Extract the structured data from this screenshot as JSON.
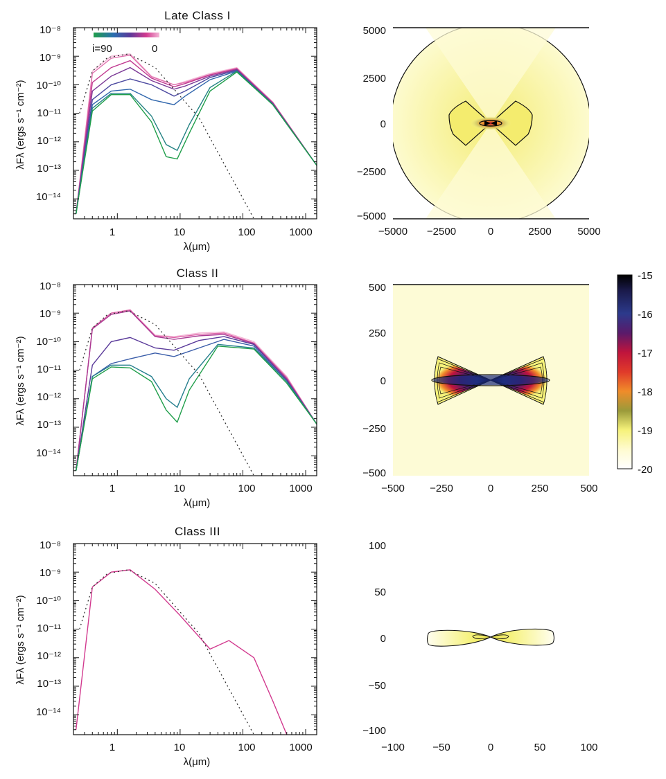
{
  "colors": {
    "inclination_gradient": [
      "#1f9e4a",
      "#2a6fb0",
      "#5a3a9a",
      "#d23a8f",
      "#f3b6d6"
    ],
    "photosphere": "#333333",
    "density_colormap": [
      "#ffffff",
      "#fffbd0",
      "#f6f27a",
      "#e8e04a",
      "#9a9a3a",
      "#f08c2a",
      "#e03a2a",
      "#c0143c",
      "#5a1a6a",
      "#2c3a8c",
      "#1a1a4a",
      "#000000"
    ]
  },
  "colorbar": {
    "ticks": [
      "-15",
      "-16",
      "-17",
      "-18",
      "-19",
      "-20"
    ],
    "range": [
      -20,
      -15
    ]
  },
  "legend": {
    "left_label": "i=90",
    "right_label": "0"
  },
  "chart_data": [
    {
      "type": "line",
      "panel": "sed",
      "title": "Late Class I",
      "xlabel": "λ(μm)",
      "ylabel": "λFλ (ergs s⁻¹ cm⁻²)",
      "xscale": "log",
      "yscale": "log",
      "xlim": [
        0.2,
        1500
      ],
      "ylim": [
        2e-15,
        1e-08
      ],
      "x_ticks": [
        "1",
        "10",
        "100",
        "1000"
      ],
      "y_ticks": [
        "10⁻⁸",
        "10⁻⁹",
        "10⁻¹⁰",
        "10⁻¹¹",
        "10⁻¹²",
        "10⁻¹³",
        "10⁻¹⁴"
      ],
      "photosphere": {
        "x": [
          0.25,
          0.4,
          0.7,
          1.5,
          4,
          20,
          150
        ],
        "y": [
          1e-11,
          3e-10,
          9e-10,
          1.2e-09,
          4e-10,
          7e-12,
          2e-15
        ]
      },
      "series": [
        {
          "x": [
            0.22,
            0.4,
            0.8,
            1.6,
            3.5,
            8,
            12,
            30,
            80,
            300,
            1500
          ],
          "y": [
            3e-15,
            3e-10,
            1e-09,
            1.2e-09,
            2e-10,
            1e-10,
            1.3e-10,
            2.5e-10,
            4e-10,
            2.5e-11,
            1.5e-13
          ]
        },
        {
          "x": [
            0.22,
            0.4,
            0.8,
            1.6,
            3.5,
            8,
            12,
            30,
            80,
            300,
            1500
          ],
          "y": [
            3e-15,
            2.5e-10,
            8.5e-10,
            1.1e-09,
            1.9e-10,
            1e-10,
            1.2e-10,
            2.3e-10,
            3.8e-10,
            2.4e-11,
            1.5e-13
          ]
        },
        {
          "x": [
            0.22,
            0.4,
            0.8,
            1.6,
            3.5,
            8,
            12,
            30,
            80,
            300,
            1500
          ],
          "y": [
            3e-15,
            1.2e-10,
            4e-10,
            7e-10,
            1.7e-10,
            8.5e-11,
            1.1e-10,
            2.2e-10,
            3.6e-10,
            2.3e-11,
            1.5e-13
          ]
        },
        {
          "x": [
            0.22,
            0.4,
            0.8,
            1.6,
            3.5,
            8,
            12,
            30,
            80,
            300,
            1500
          ],
          "y": [
            3e-15,
            6e-11,
            2e-10,
            4e-10,
            1.4e-10,
            7e-11,
            9e-11,
            2e-10,
            3.4e-10,
            2.2e-11,
            1.5e-13
          ]
        },
        {
          "x": [
            0.22,
            0.4,
            0.8,
            1.6,
            3.5,
            8,
            12,
            30,
            80,
            300,
            1500
          ],
          "y": [
            3e-15,
            3e-11,
            1e-10,
            1.6e-10,
            1e-10,
            4e-11,
            6e-11,
            1.8e-10,
            3.2e-10,
            2.1e-11,
            1.5e-13
          ]
        },
        {
          "x": [
            0.22,
            0.4,
            0.8,
            1.6,
            3.5,
            8,
            12,
            30,
            80,
            300,
            1500
          ],
          "y": [
            3e-15,
            2e-11,
            6e-11,
            7e-11,
            3e-11,
            2e-11,
            4e-11,
            1.5e-10,
            3e-10,
            2e-11,
            1.5e-13
          ]
        },
        {
          "x": [
            0.22,
            0.4,
            0.8,
            1.6,
            3.5,
            6,
            9,
            14,
            30,
            80,
            300,
            1500
          ],
          "y": [
            3e-15,
            1.5e-11,
            5e-11,
            5e-11,
            8e-12,
            8e-13,
            5e-13,
            4e-12,
            8e-11,
            3e-10,
            2e-11,
            1.5e-13
          ]
        },
        {
          "x": [
            0.22,
            0.4,
            0.8,
            1.6,
            3.5,
            6,
            9,
            14,
            30,
            80,
            300,
            1500
          ],
          "y": [
            3e-15,
            1.2e-11,
            4.5e-11,
            4.5e-11,
            5e-12,
            3e-13,
            2.5e-13,
            2e-12,
            6e-11,
            2.8e-10,
            2e-11,
            1.5e-13
          ]
        }
      ]
    },
    {
      "type": "heatmap",
      "panel": "density",
      "xlim": [
        -5000,
        5000
      ],
      "ylim": [
        -5000,
        5000
      ],
      "x_ticks": [
        "−5000",
        "−2500",
        "0",
        "2500",
        "5000"
      ],
      "y_ticks": [
        "5000",
        "2500",
        "0",
        "−2500",
        "−5000"
      ],
      "structure": "envelope_disk"
    },
    {
      "type": "line",
      "panel": "sed",
      "title": "Class II",
      "xlabel": "λ(μm)",
      "ylabel": "λFλ (ergs s⁻¹ cm⁻²)",
      "xscale": "log",
      "yscale": "log",
      "xlim": [
        0.2,
        1500
      ],
      "ylim": [
        2e-15,
        1e-08
      ],
      "x_ticks": [
        "1",
        "10",
        "100",
        "1000"
      ],
      "y_ticks": [
        "10⁻⁸",
        "10⁻⁹",
        "10⁻¹⁰",
        "10⁻¹¹",
        "10⁻¹²",
        "10⁻¹³",
        "10⁻¹⁴"
      ],
      "photosphere": {
        "x": [
          0.25,
          0.4,
          0.7,
          1.5,
          4,
          20,
          150
        ],
        "y": [
          1e-11,
          3e-10,
          9e-10,
          1.2e-09,
          4e-10,
          7e-12,
          2e-15
        ]
      },
      "series": [
        {
          "x": [
            0.22,
            0.4,
            0.8,
            1.6,
            4,
            8,
            20,
            50,
            150,
            500,
            1500
          ],
          "y": [
            3e-15,
            3e-10,
            1e-09,
            1.3e-09,
            1.7e-10,
            1.5e-10,
            2e-10,
            2.2e-10,
            1e-10,
            6e-12,
            1.3e-13
          ]
        },
        {
          "x": [
            0.22,
            0.4,
            0.8,
            1.6,
            4,
            8,
            20,
            50,
            150,
            500,
            1500
          ],
          "y": [
            3e-15,
            3e-10,
            1e-09,
            1.3e-09,
            1.6e-10,
            1.4e-10,
            1.8e-10,
            2e-10,
            9e-11,
            5.5e-12,
            1.3e-13
          ]
        },
        {
          "x": [
            0.22,
            0.4,
            0.8,
            1.6,
            4,
            8,
            20,
            50,
            150,
            500,
            1500
          ],
          "y": [
            3e-15,
            2.8e-10,
            9e-10,
            1.2e-09,
            1.5e-10,
            1.2e-10,
            1.6e-10,
            1.8e-10,
            8.5e-11,
            5e-12,
            1.3e-13
          ]
        },
        {
          "x": [
            0.22,
            0.4,
            0.8,
            1.6,
            4,
            8,
            20,
            50,
            150,
            500,
            1500
          ],
          "y": [
            3e-15,
            1.5e-11,
            1e-10,
            1.4e-10,
            6e-11,
            5e-11,
            1.1e-10,
            1.5e-10,
            8e-11,
            4.5e-12,
            1.3e-13
          ]
        },
        {
          "x": [
            0.22,
            0.4,
            0.8,
            1.6,
            4,
            8,
            20,
            50,
            150,
            500,
            1500
          ],
          "y": [
            3e-15,
            6e-12,
            1.7e-11,
            2.5e-11,
            4e-11,
            3e-11,
            6e-11,
            1.2e-10,
            7e-11,
            4e-12,
            1.3e-13
          ]
        },
        {
          "x": [
            0.22,
            0.4,
            0.8,
            1.6,
            3.5,
            6,
            9,
            14,
            40,
            150,
            500,
            1500
          ],
          "y": [
            3e-15,
            6e-12,
            1.5e-11,
            1.5e-11,
            6e-12,
            1e-12,
            5e-13,
            5e-12,
            8e-11,
            6e-11,
            4e-12,
            1.3e-13
          ]
        },
        {
          "x": [
            0.22,
            0.4,
            0.8,
            1.6,
            3.5,
            6,
            9,
            14,
            40,
            150,
            500,
            1500
          ],
          "y": [
            3e-15,
            5e-12,
            1.3e-11,
            1.2e-11,
            4e-12,
            4e-13,
            1.5e-13,
            2e-12,
            7e-11,
            5.5e-11,
            3.5e-12,
            1.3e-13
          ]
        }
      ]
    },
    {
      "type": "heatmap",
      "panel": "density",
      "xlim": [
        -500,
        500
      ],
      "ylim": [
        -500,
        500
      ],
      "x_ticks": [
        "−500",
        "−250",
        "0",
        "250",
        "500"
      ],
      "y_ticks": [
        "500",
        "250",
        "0",
        "−250",
        "−500"
      ],
      "structure": "flared_disk"
    },
    {
      "type": "line",
      "panel": "sed",
      "title": "Class III",
      "xlabel": "λ(μm)",
      "ylabel": "λFλ (ergs s⁻¹ cm⁻²)",
      "xscale": "log",
      "yscale": "log",
      "xlim": [
        0.2,
        1500
      ],
      "ylim": [
        2e-15,
        1e-08
      ],
      "x_ticks": [
        "1",
        "10",
        "100",
        "1000"
      ],
      "y_ticks": [
        "10⁻⁸",
        "10⁻⁹",
        "10⁻¹⁰",
        "10⁻¹¹",
        "10⁻¹²",
        "10⁻¹³",
        "10⁻¹⁴"
      ],
      "photosphere": {
        "x": [
          0.25,
          0.4,
          0.7,
          1.5,
          4,
          20,
          150
        ],
        "y": [
          1e-11,
          3e-10,
          9e-10,
          1.2e-09,
          4e-10,
          7e-12,
          2e-15
        ]
      },
      "series": [
        {
          "x": [
            0.22,
            0.4,
            0.8,
            1.6,
            4,
            10,
            30,
            60,
            150,
            300,
            500
          ],
          "y": [
            3e-15,
            3e-10,
            1e-09,
            1.2e-09,
            2.5e-10,
            3e-11,
            2e-12,
            4e-12,
            1e-12,
            3e-14,
            2e-15
          ]
        }
      ]
    },
    {
      "type": "heatmap",
      "panel": "density",
      "xlim": [
        -100,
        100
      ],
      "ylim": [
        -100,
        100
      ],
      "x_ticks": [
        "−100",
        "−50",
        "0",
        "50",
        "100"
      ],
      "y_ticks": [
        "100",
        "50",
        "0",
        "−50",
        "−100"
      ],
      "structure": "thin_disk"
    }
  ]
}
